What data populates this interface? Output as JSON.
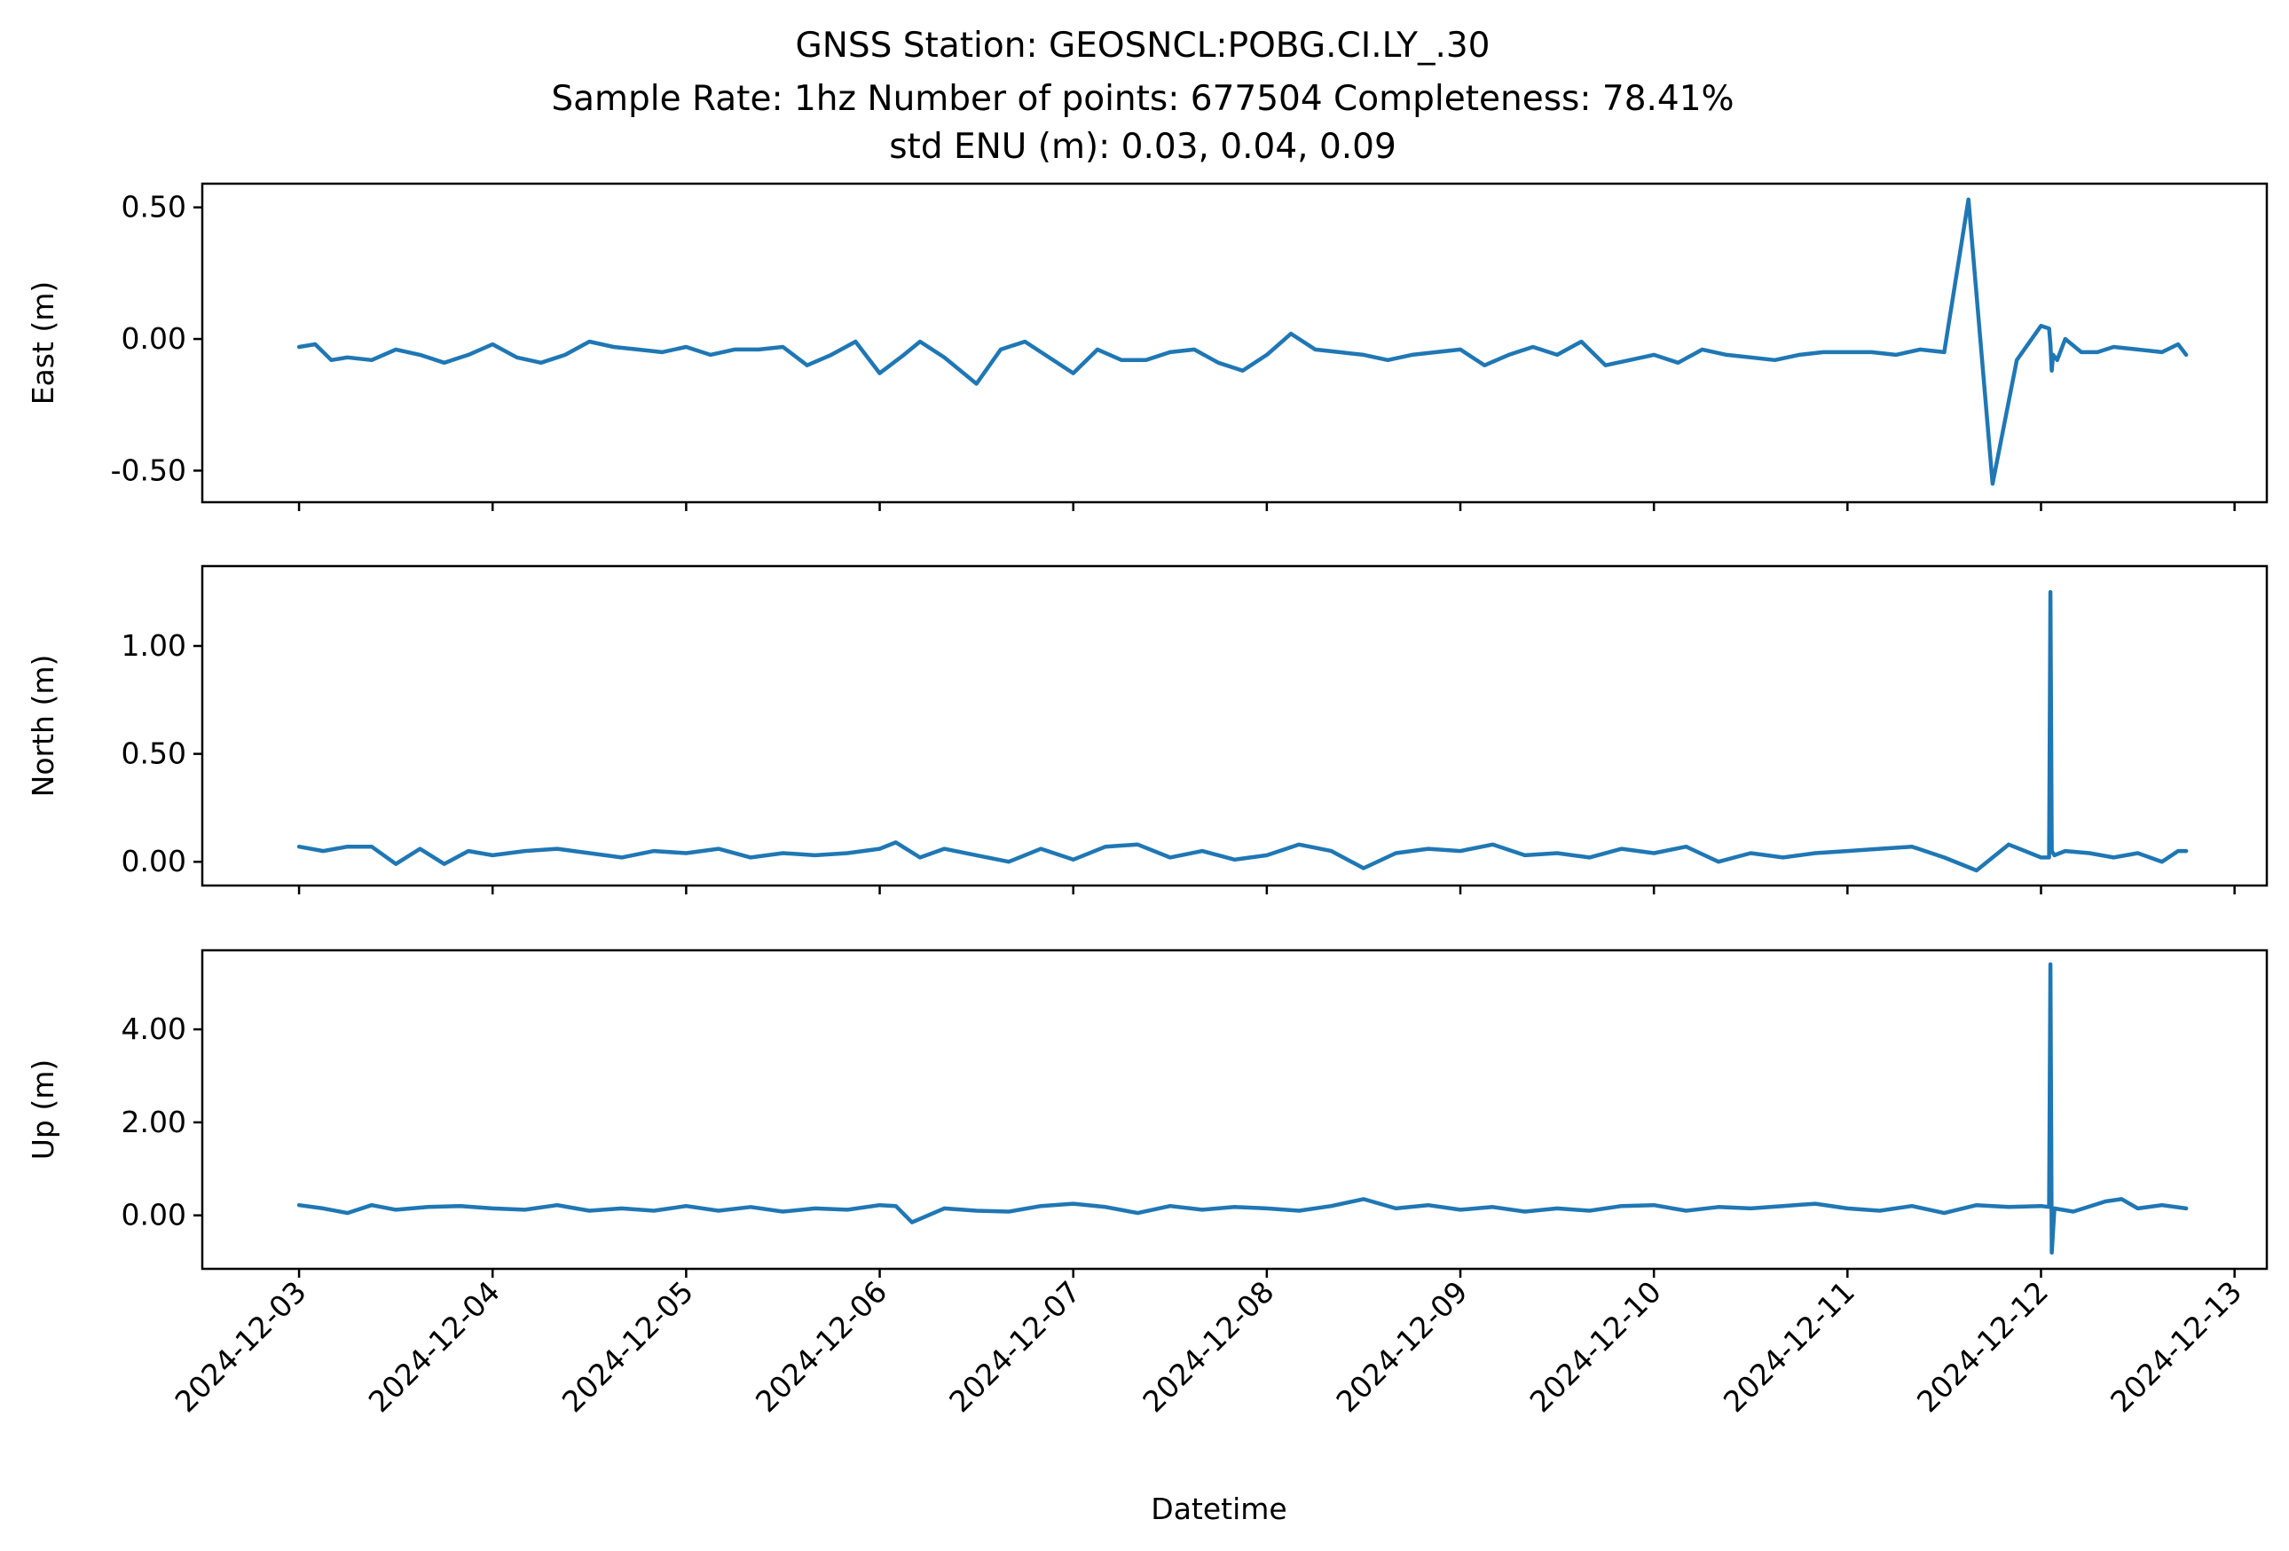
{
  "figure": {
    "title_lines": [
      "GNSS Station: GEOSNCL:POBG.CI.LY_.30",
      "Sample Rate: 1hz   Number of points: 677504    Completeness:  78.41%",
      "std ENU (m):  0.03, 0.04, 0.09"
    ],
    "xlabel": "Datetime",
    "colors": {
      "line": "#1f77b4",
      "frame": "#000000",
      "background": "#ffffff"
    }
  },
  "chart_data": [
    {
      "type": "line",
      "ylabel": "East (m)",
      "xlim": [
        "2024-12-02 12:00",
        "2024-12-13 04:00"
      ],
      "ylim": [
        -0.62,
        0.59
      ],
      "yticks": [
        0.5,
        0.0,
        -0.5
      ],
      "ytick_labels": [
        "0.50",
        "0.00",
        "-0.50"
      ],
      "xticks": [
        "2024-12-03",
        "2024-12-04",
        "2024-12-05",
        "2024-12-06",
        "2024-12-07",
        "2024-12-08",
        "2024-12-09",
        "2024-12-10",
        "2024-12-11",
        "2024-12-12",
        "2024-12-13"
      ],
      "xtick_labels_visible": false,
      "series": [
        {
          "x": [
            "2024-12-03 00:00",
            "2024-12-03 02:00",
            "2024-12-03 04:00",
            "2024-12-03 06:00",
            "2024-12-03 09:00",
            "2024-12-03 12:00",
            "2024-12-03 15:00",
            "2024-12-03 18:00",
            "2024-12-03 21:00",
            "2024-12-04 00:00",
            "2024-12-04 03:00",
            "2024-12-04 06:00",
            "2024-12-04 09:00",
            "2024-12-04 12:00",
            "2024-12-04 15:00",
            "2024-12-04 18:00",
            "2024-12-04 21:00",
            "2024-12-05 00:00",
            "2024-12-05 03:00",
            "2024-12-05 06:00",
            "2024-12-05 09:00",
            "2024-12-05 12:00",
            "2024-12-05 15:00",
            "2024-12-05 18:00",
            "2024-12-05 21:00",
            "2024-12-06 00:00",
            "2024-12-06 03:00",
            "2024-12-06 05:00",
            "2024-12-06 08:00",
            "2024-12-06 12:00",
            "2024-12-06 15:00",
            "2024-12-06 18:00",
            "2024-12-06 21:00",
            "2024-12-07 00:00",
            "2024-12-07 03:00",
            "2024-12-07 06:00",
            "2024-12-07 09:00",
            "2024-12-07 12:00",
            "2024-12-07 15:00",
            "2024-12-07 18:00",
            "2024-12-07 21:00",
            "2024-12-08 00:00",
            "2024-12-08 03:00",
            "2024-12-08 06:00",
            "2024-12-08 09:00",
            "2024-12-08 12:00",
            "2024-12-08 15:00",
            "2024-12-08 18:00",
            "2024-12-08 21:00",
            "2024-12-09 00:00",
            "2024-12-09 03:00",
            "2024-12-09 06:00",
            "2024-12-09 09:00",
            "2024-12-09 12:00",
            "2024-12-09 15:00",
            "2024-12-09 18:00",
            "2024-12-09 21:00",
            "2024-12-10 00:00",
            "2024-12-10 03:00",
            "2024-12-10 06:00",
            "2024-12-10 09:00",
            "2024-12-10 12:00",
            "2024-12-10 15:00",
            "2024-12-10 18:00",
            "2024-12-10 21:00",
            "2024-12-11 00:00",
            "2024-12-11 03:00",
            "2024-12-11 06:00",
            "2024-12-11 09:00",
            "2024-12-11 12:00",
            "2024-12-11 15:00",
            "2024-12-11 18:00",
            "2024-12-11 21:00",
            "2024-12-12 00:00",
            "2024-12-12 01:00",
            "2024-12-12 01:10",
            "2024-12-12 01:20",
            "2024-12-12 01:30",
            "2024-12-12 02:00",
            "2024-12-12 03:00",
            "2024-12-12 05:00",
            "2024-12-12 07:00",
            "2024-12-12 09:00",
            "2024-12-12 12:00",
            "2024-12-12 15:00",
            "2024-12-12 17:00",
            "2024-12-12 18:00"
          ],
          "y": [
            -0.03,
            -0.02,
            -0.08,
            -0.07,
            -0.08,
            -0.04,
            -0.06,
            -0.09,
            -0.06,
            -0.02,
            -0.07,
            -0.09,
            -0.06,
            -0.01,
            -0.03,
            -0.04,
            -0.05,
            -0.03,
            -0.06,
            -0.04,
            -0.04,
            -0.03,
            -0.1,
            -0.06,
            -0.01,
            -0.13,
            -0.06,
            -0.01,
            -0.07,
            -0.17,
            -0.04,
            -0.01,
            -0.07,
            -0.13,
            -0.04,
            -0.08,
            -0.08,
            -0.05,
            -0.04,
            -0.09,
            -0.12,
            -0.06,
            0.02,
            -0.04,
            -0.05,
            -0.06,
            -0.08,
            -0.06,
            -0.05,
            -0.04,
            -0.1,
            -0.06,
            -0.03,
            -0.06,
            -0.01,
            -0.1,
            -0.08,
            -0.06,
            -0.09,
            -0.04,
            -0.06,
            -0.07,
            -0.08,
            -0.06,
            -0.05,
            -0.05,
            -0.05,
            -0.06,
            -0.04,
            -0.05,
            0.53,
            -0.55,
            -0.08,
            0.05,
            0.04,
            -0.02,
            -0.12,
            -0.06,
            -0.08,
            0.0,
            -0.05,
            -0.05,
            -0.03,
            -0.04,
            -0.05,
            -0.02,
            -0.06
          ],
          "note_order": "sequential"
        }
      ]
    },
    {
      "type": "line",
      "ylabel": "North (m)",
      "xlim": [
        "2024-12-02 12:00",
        "2024-12-13 04:00"
      ],
      "ylim": [
        -0.11,
        1.37
      ],
      "yticks": [
        1.0,
        0.5,
        0.0
      ],
      "ytick_labels": [
        "1.00",
        "0.50",
        "0.00"
      ],
      "xticks": [
        "2024-12-03",
        "2024-12-04",
        "2024-12-05",
        "2024-12-06",
        "2024-12-07",
        "2024-12-08",
        "2024-12-09",
        "2024-12-10",
        "2024-12-11",
        "2024-12-12",
        "2024-12-13"
      ],
      "xtick_labels_visible": false,
      "series": [
        {
          "x": [
            "2024-12-03 00:00",
            "2024-12-03 03:00",
            "2024-12-03 06:00",
            "2024-12-03 09:00",
            "2024-12-03 12:00",
            "2024-12-03 15:00",
            "2024-12-03 18:00",
            "2024-12-03 21:00",
            "2024-12-04 00:00",
            "2024-12-04 04:00",
            "2024-12-04 08:00",
            "2024-12-04 12:00",
            "2024-12-04 16:00",
            "2024-12-04 20:00",
            "2024-12-05 00:00",
            "2024-12-05 04:00",
            "2024-12-05 08:00",
            "2024-12-05 12:00",
            "2024-12-05 16:00",
            "2024-12-05 20:00",
            "2024-12-06 00:00",
            "2024-12-06 02:00",
            "2024-12-06 05:00",
            "2024-12-06 08:00",
            "2024-12-06 12:00",
            "2024-12-06 16:00",
            "2024-12-06 20:00",
            "2024-12-07 00:00",
            "2024-12-07 04:00",
            "2024-12-07 08:00",
            "2024-12-07 12:00",
            "2024-12-07 16:00",
            "2024-12-07 20:00",
            "2024-12-08 00:00",
            "2024-12-08 04:00",
            "2024-12-08 08:00",
            "2024-12-08 12:00",
            "2024-12-08 16:00",
            "2024-12-08 20:00",
            "2024-12-09 00:00",
            "2024-12-09 04:00",
            "2024-12-09 08:00",
            "2024-12-09 12:00",
            "2024-12-09 16:00",
            "2024-12-09 20:00",
            "2024-12-10 00:00",
            "2024-12-10 04:00",
            "2024-12-10 08:00",
            "2024-12-10 12:00",
            "2024-12-10 16:00",
            "2024-12-10 20:00",
            "2024-12-11 00:00",
            "2024-12-11 04:00",
            "2024-12-11 08:00",
            "2024-12-11 12:00",
            "2024-12-11 16:00",
            "2024-12-11 20:00",
            "2024-12-12 00:00",
            "2024-12-12 01:00",
            "2024-12-12 01:10",
            "2024-12-12 01:20",
            "2024-12-12 01:40",
            "2024-12-12 03:00",
            "2024-12-12 06:00",
            "2024-12-12 09:00",
            "2024-12-12 12:00",
            "2024-12-12 15:00",
            "2024-12-12 17:00",
            "2024-12-12 18:00"
          ],
          "y": [
            0.07,
            0.05,
            0.07,
            0.07,
            -0.01,
            0.06,
            -0.01,
            0.05,
            0.03,
            0.05,
            0.06,
            0.04,
            0.02,
            0.05,
            0.04,
            0.06,
            0.02,
            0.04,
            0.03,
            0.04,
            0.06,
            0.09,
            0.02,
            0.06,
            0.03,
            0.0,
            0.06,
            0.01,
            0.07,
            0.08,
            0.02,
            0.05,
            0.01,
            0.03,
            0.08,
            0.05,
            -0.03,
            0.04,
            0.06,
            0.05,
            0.08,
            0.03,
            0.04,
            0.02,
            0.06,
            0.04,
            0.07,
            0.0,
            0.04,
            0.02,
            0.04,
            0.05,
            0.06,
            0.07,
            0.02,
            -0.04,
            0.08,
            0.02,
            0.02,
            1.25,
            0.05,
            0.03,
            0.05,
            0.04,
            0.02,
            0.04,
            0.0,
            0.05,
            0.05
          ]
        }
      ]
    },
    {
      "type": "line",
      "ylabel": "Up (m)",
      "xlim": [
        "2024-12-02 12:00",
        "2024-12-13 04:00"
      ],
      "ylim": [
        -1.15,
        5.7
      ],
      "yticks": [
        4.0,
        2.0,
        0.0
      ],
      "ytick_labels": [
        "4.00",
        "2.00",
        "0.00"
      ],
      "xticks": [
        "2024-12-03",
        "2024-12-04",
        "2024-12-05",
        "2024-12-06",
        "2024-12-07",
        "2024-12-08",
        "2024-12-09",
        "2024-12-10",
        "2024-12-11",
        "2024-12-12",
        "2024-12-13"
      ],
      "xtick_labels": [
        "2024-12-03",
        "2024-12-04",
        "2024-12-05",
        "2024-12-06",
        "2024-12-07",
        "2024-12-08",
        "2024-12-09",
        "2024-12-10",
        "2024-12-11",
        "2024-12-12",
        "2024-12-13"
      ],
      "xtick_labels_visible": true,
      "series": [
        {
          "x": [
            "2024-12-03 00:00",
            "2024-12-03 03:00",
            "2024-12-03 06:00",
            "2024-12-03 09:00",
            "2024-12-03 12:00",
            "2024-12-03 16:00",
            "2024-12-03 20:00",
            "2024-12-04 00:00",
            "2024-12-04 04:00",
            "2024-12-04 08:00",
            "2024-12-04 12:00",
            "2024-12-04 16:00",
            "2024-12-04 20:00",
            "2024-12-05 00:00",
            "2024-12-05 04:00",
            "2024-12-05 08:00",
            "2024-12-05 12:00",
            "2024-12-05 16:00",
            "2024-12-05 20:00",
            "2024-12-06 00:00",
            "2024-12-06 02:00",
            "2024-12-06 04:00",
            "2024-12-06 08:00",
            "2024-12-06 12:00",
            "2024-12-06 16:00",
            "2024-12-06 20:00",
            "2024-12-07 00:00",
            "2024-12-07 04:00",
            "2024-12-07 08:00",
            "2024-12-07 12:00",
            "2024-12-07 16:00",
            "2024-12-07 20:00",
            "2024-12-08 00:00",
            "2024-12-08 04:00",
            "2024-12-08 08:00",
            "2024-12-08 12:00",
            "2024-12-08 16:00",
            "2024-12-08 20:00",
            "2024-12-09 00:00",
            "2024-12-09 04:00",
            "2024-12-09 08:00",
            "2024-12-09 12:00",
            "2024-12-09 16:00",
            "2024-12-09 20:00",
            "2024-12-10 00:00",
            "2024-12-10 04:00",
            "2024-12-10 08:00",
            "2024-12-10 12:00",
            "2024-12-10 16:00",
            "2024-12-10 20:00",
            "2024-12-11 00:00",
            "2024-12-11 04:00",
            "2024-12-11 08:00",
            "2024-12-11 12:00",
            "2024-12-11 16:00",
            "2024-12-11 20:00",
            "2024-12-12 00:00",
            "2024-12-12 01:00",
            "2024-12-12 01:10",
            "2024-12-12 01:20",
            "2024-12-12 01:40",
            "2024-12-12 04:00",
            "2024-12-12 08:00",
            "2024-12-12 10:00",
            "2024-12-12 12:00",
            "2024-12-12 15:00",
            "2024-12-12 18:00"
          ],
          "y": [
            0.22,
            0.15,
            0.05,
            0.22,
            0.12,
            0.18,
            0.2,
            0.15,
            0.12,
            0.22,
            0.1,
            0.15,
            0.1,
            0.2,
            0.1,
            0.18,
            0.08,
            0.15,
            0.12,
            0.22,
            0.2,
            -0.15,
            0.15,
            0.1,
            0.08,
            0.2,
            0.25,
            0.18,
            0.05,
            0.2,
            0.12,
            0.18,
            0.15,
            0.1,
            0.2,
            0.35,
            0.15,
            0.22,
            0.12,
            0.18,
            0.08,
            0.15,
            0.1,
            0.2,
            0.22,
            0.1,
            0.18,
            0.15,
            0.2,
            0.25,
            0.15,
            0.1,
            0.2,
            0.05,
            0.22,
            0.18,
            0.2,
            0.18,
            5.4,
            -0.8,
            0.15,
            0.08,
            0.3,
            0.35,
            0.15,
            0.22,
            0.15
          ]
        }
      ]
    }
  ]
}
